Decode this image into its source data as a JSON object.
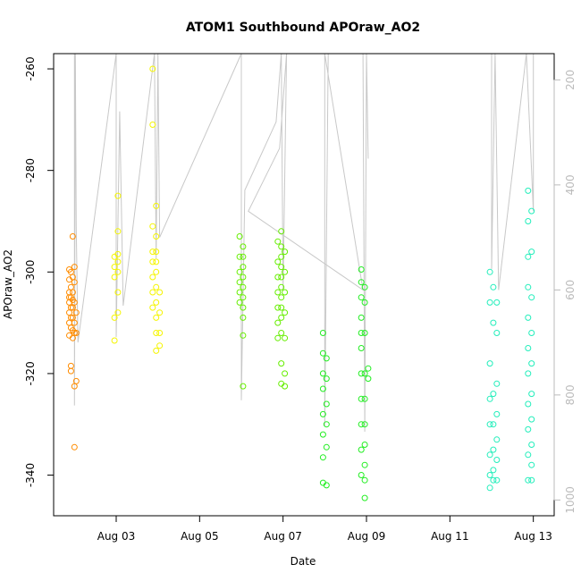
{
  "chart_data": {
    "type": "scatter",
    "title": "ATOM1 Southbound APOraw_AO2",
    "xlabel": "Date",
    "ylabel": "APOraw_AO2",
    "x_range": [
      "2023-08-01T12:00",
      "2023-08-13T12:00"
    ],
    "x_ticks": [
      "Aug 03",
      "Aug 05",
      "Aug 07",
      "Aug 09",
      "Aug 11",
      "Aug 13"
    ],
    "ylim": [
      -348,
      -257
    ],
    "y_ticks": [
      -260,
      -280,
      -300,
      -320,
      -340
    ],
    "y2_label": "",
    "y2_lim": [
      1030,
      150
    ],
    "y2_ticks": [
      200,
      400,
      600,
      800,
      1000
    ],
    "y2_color": "#bbbbbb",
    "grid": false,
    "depth_trace": {
      "color": "#c8c8c8",
      "points": [
        [
          "2023-08-02T00:00",
          150
        ],
        [
          "2023-08-02T00:00",
          820
        ],
        [
          "2023-08-02T00:30",
          150
        ],
        [
          "2023-08-02T01:00",
          480
        ],
        [
          "2023-08-02T02:00",
          700
        ],
        [
          "2023-08-03T00:00",
          150
        ],
        [
          "2023-08-03T00:00",
          690
        ],
        [
          "2023-08-03T02:00",
          260
        ],
        [
          "2023-08-03T04:00",
          630
        ],
        [
          "2023-08-03T22:00",
          150
        ],
        [
          "2023-08-03T23:00",
          540
        ],
        [
          "2023-08-04T00:00",
          150
        ],
        [
          "2023-08-04T01:00",
          500
        ],
        [
          "2023-08-06T00:00",
          150
        ],
        [
          "2023-08-06T00:00",
          810
        ],
        [
          "2023-08-06T02:00",
          410
        ],
        [
          "2023-08-06T20:00",
          280
        ],
        [
          "2023-08-06T23:00",
          150
        ],
        [
          "2023-08-07T00:00",
          600
        ],
        [
          "2023-08-07T02:00",
          150
        ],
        [
          "2023-08-06T22:00",
          330
        ],
        [
          "2023-08-06T04:00",
          450
        ],
        [
          "2023-08-08T22:00",
          600
        ],
        [
          "2023-08-08T00:00",
          150
        ],
        [
          "2023-08-08T00:00",
          860
        ],
        [
          "2023-08-08T02:00",
          150
        ],
        [
          "2023-08-08T22:00",
          150
        ],
        [
          "2023-08-08T23:00",
          870
        ],
        [
          "2023-08-09T00:00",
          150
        ],
        [
          "2023-08-09T01:00",
          350
        ],
        [
          "2023-08-09T00:00",
          150
        ],
        [
          "2023-08-12T00:00",
          150
        ],
        [
          "2023-08-12T00:00",
          560
        ],
        [
          "2023-08-12T02:00",
          150
        ],
        [
          "2023-08-12T04:00",
          600
        ],
        [
          "2023-08-12T20:00",
          150
        ],
        [
          "2023-08-13T00:00",
          450
        ],
        [
          "2023-08-13T00:00",
          150
        ]
      ]
    },
    "series": [
      {
        "color": "#ff8c00",
        "points": [
          [
            "2023-08-01T21:00",
            -299.5
          ],
          [
            "2023-08-01T21:00",
            -301.5
          ],
          [
            "2023-08-01T21:00",
            -304
          ],
          [
            "2023-08-01T21:00",
            -305
          ],
          [
            "2023-08-01T21:00",
            -306
          ],
          [
            "2023-08-01T21:00",
            -308
          ],
          [
            "2023-08-01T21:00",
            -310
          ],
          [
            "2023-08-01T21:00",
            -312.5
          ],
          [
            "2023-08-01T22:00",
            -300
          ],
          [
            "2023-08-01T22:00",
            -303
          ],
          [
            "2023-08-01T22:00",
            -305
          ],
          [
            "2023-08-01T22:00",
            -307
          ],
          [
            "2023-08-01T22:00",
            -309
          ],
          [
            "2023-08-01T22:00",
            -311
          ],
          [
            "2023-08-01T22:00",
            -318.5
          ],
          [
            "2023-08-01T22:00",
            -319.5
          ],
          [
            "2023-08-01T23:00",
            -293
          ],
          [
            "2023-08-01T23:00",
            -301
          ],
          [
            "2023-08-01T23:00",
            -304
          ],
          [
            "2023-08-01T23:00",
            -305.5
          ],
          [
            "2023-08-01T23:00",
            -307
          ],
          [
            "2023-08-01T23:00",
            -309
          ],
          [
            "2023-08-01T23:00",
            -311.5
          ],
          [
            "2023-08-01T23:00",
            -313
          ],
          [
            "2023-08-02T00:00",
            -299
          ],
          [
            "2023-08-02T00:00",
            -302
          ],
          [
            "2023-08-02T00:00",
            -306
          ],
          [
            "2023-08-02T00:00",
            -310
          ],
          [
            "2023-08-02T00:00",
            -312
          ],
          [
            "2023-08-02T00:00",
            -322.5
          ],
          [
            "2023-08-02T00:00",
            -334.5
          ],
          [
            "2023-08-02T01:00",
            -308
          ],
          [
            "2023-08-02T01:00",
            -312
          ],
          [
            "2023-08-02T01:00",
            -321.5
          ]
        ]
      },
      {
        "color": "#f5f500",
        "points": [
          [
            "2023-08-02T23:00",
            -297
          ],
          [
            "2023-08-02T23:00",
            -299
          ],
          [
            "2023-08-02T23:00",
            -301
          ],
          [
            "2023-08-02T23:00",
            -309
          ],
          [
            "2023-08-02T23:00",
            -313.5
          ],
          [
            "2023-08-03T01:00",
            -285
          ],
          [
            "2023-08-03T01:00",
            -292
          ],
          [
            "2023-08-03T01:00",
            -296.5
          ],
          [
            "2023-08-03T01:00",
            -298
          ],
          [
            "2023-08-03T01:00",
            -300
          ],
          [
            "2023-08-03T01:00",
            -304
          ],
          [
            "2023-08-03T01:00",
            -308
          ],
          [
            "2023-08-03T21:00",
            -260
          ],
          [
            "2023-08-03T21:00",
            -271
          ],
          [
            "2023-08-03T21:00",
            -291
          ],
          [
            "2023-08-03T21:00",
            -296
          ],
          [
            "2023-08-03T21:00",
            -298
          ],
          [
            "2023-08-03T21:00",
            -301
          ],
          [
            "2023-08-03T21:00",
            -304
          ],
          [
            "2023-08-03T21:00",
            -307
          ],
          [
            "2023-08-03T23:00",
            -287
          ],
          [
            "2023-08-03T23:00",
            -293
          ],
          [
            "2023-08-03T23:00",
            -296
          ],
          [
            "2023-08-03T23:00",
            -298
          ],
          [
            "2023-08-03T23:00",
            -300
          ],
          [
            "2023-08-03T23:00",
            -303
          ],
          [
            "2023-08-03T23:00",
            -306
          ],
          [
            "2023-08-03T23:00",
            -309
          ],
          [
            "2023-08-03T23:00",
            -312
          ],
          [
            "2023-08-03T23:00",
            -315.5
          ],
          [
            "2023-08-04T01:00",
            -304
          ],
          [
            "2023-08-04T01:00",
            -308
          ],
          [
            "2023-08-04T01:00",
            -312
          ],
          [
            "2023-08-04T01:00",
            -314.5
          ]
        ]
      },
      {
        "color": "#66ee00",
        "points": [
          [
            "2023-08-05T23:00",
            -293
          ],
          [
            "2023-08-05T23:00",
            -297
          ],
          [
            "2023-08-05T23:00",
            -300
          ],
          [
            "2023-08-05T23:00",
            -302
          ],
          [
            "2023-08-05T23:00",
            -304
          ],
          [
            "2023-08-05T23:00",
            -306
          ],
          [
            "2023-08-06T01:00",
            -295
          ],
          [
            "2023-08-06T01:00",
            -297
          ],
          [
            "2023-08-06T01:00",
            -299
          ],
          [
            "2023-08-06T01:00",
            -301
          ],
          [
            "2023-08-06T01:00",
            -303
          ],
          [
            "2023-08-06T01:00",
            -305
          ],
          [
            "2023-08-06T01:00",
            -307
          ],
          [
            "2023-08-06T01:00",
            -309
          ],
          [
            "2023-08-06T01:00",
            -312.5
          ],
          [
            "2023-08-06T01:00",
            -322.5
          ],
          [
            "2023-08-06T21:00",
            -294
          ],
          [
            "2023-08-06T21:00",
            -298
          ],
          [
            "2023-08-06T21:00",
            -301
          ],
          [
            "2023-08-06T21:00",
            -304
          ],
          [
            "2023-08-06T21:00",
            -307
          ],
          [
            "2023-08-06T21:00",
            -310
          ],
          [
            "2023-08-06T21:00",
            -313
          ],
          [
            "2023-08-06T23:00",
            -292
          ],
          [
            "2023-08-06T23:00",
            -295
          ],
          [
            "2023-08-06T23:00",
            -297
          ],
          [
            "2023-08-06T23:00",
            -299
          ],
          [
            "2023-08-06T23:00",
            -301
          ],
          [
            "2023-08-06T23:00",
            -303
          ],
          [
            "2023-08-06T23:00",
            -305
          ],
          [
            "2023-08-06T23:00",
            -307
          ],
          [
            "2023-08-06T23:00",
            -309
          ],
          [
            "2023-08-06T23:00",
            -312
          ],
          [
            "2023-08-06T23:00",
            -318
          ],
          [
            "2023-08-06T23:00",
            -322
          ],
          [
            "2023-08-07T01:00",
            -296
          ],
          [
            "2023-08-07T01:00",
            -300
          ],
          [
            "2023-08-07T01:00",
            -304
          ],
          [
            "2023-08-07T01:00",
            -308
          ],
          [
            "2023-08-07T01:00",
            -313
          ],
          [
            "2023-08-07T01:00",
            -320
          ],
          [
            "2023-08-07T01:00",
            -322.5
          ]
        ]
      },
      {
        "color": "#22ee22",
        "points": [
          [
            "2023-08-07T23:00",
            -312
          ],
          [
            "2023-08-07T23:00",
            -316
          ],
          [
            "2023-08-07T23:00",
            -320
          ],
          [
            "2023-08-07T23:00",
            -323
          ],
          [
            "2023-08-07T23:00",
            -328
          ],
          [
            "2023-08-07T23:00",
            -332
          ],
          [
            "2023-08-07T23:00",
            -336.5
          ],
          [
            "2023-08-07T23:00",
            -341.5
          ],
          [
            "2023-08-08T01:00",
            -317
          ],
          [
            "2023-08-08T01:00",
            -321
          ],
          [
            "2023-08-08T01:00",
            -326
          ],
          [
            "2023-08-08T01:00",
            -330
          ],
          [
            "2023-08-08T01:00",
            -334.5
          ],
          [
            "2023-08-08T01:00",
            -342
          ],
          [
            "2023-08-08T21:00",
            -299.5
          ],
          [
            "2023-08-08T21:00",
            -302
          ],
          [
            "2023-08-08T21:00",
            -305
          ],
          [
            "2023-08-08T21:00",
            -309
          ],
          [
            "2023-08-08T21:00",
            -312
          ],
          [
            "2023-08-08T21:00",
            -315
          ],
          [
            "2023-08-08T21:00",
            -320
          ],
          [
            "2023-08-08T21:00",
            -325
          ],
          [
            "2023-08-08T21:00",
            -330
          ],
          [
            "2023-08-08T21:00",
            -335
          ],
          [
            "2023-08-08T21:00",
            -340
          ],
          [
            "2023-08-08T23:00",
            -303
          ],
          [
            "2023-08-08T23:00",
            -306
          ],
          [
            "2023-08-08T23:00",
            -312
          ],
          [
            "2023-08-08T23:00",
            -320
          ],
          [
            "2023-08-08T23:00",
            -325
          ],
          [
            "2023-08-08T23:00",
            -330
          ],
          [
            "2023-08-08T23:00",
            -334
          ],
          [
            "2023-08-08T23:00",
            -338
          ],
          [
            "2023-08-08T23:00",
            -341
          ],
          [
            "2023-08-08T23:00",
            -344.5
          ],
          [
            "2023-08-09T01:00",
            -319
          ],
          [
            "2023-08-09T01:00",
            -321
          ]
        ]
      },
      {
        "color": "#22eebb",
        "points": [
          [
            "2023-08-11T23:00",
            -300
          ],
          [
            "2023-08-11T23:00",
            -306
          ],
          [
            "2023-08-11T23:00",
            -318
          ],
          [
            "2023-08-11T23:00",
            -325
          ],
          [
            "2023-08-11T23:00",
            -330
          ],
          [
            "2023-08-11T23:00",
            -336
          ],
          [
            "2023-08-11T23:00",
            -340
          ],
          [
            "2023-08-11T23:00",
            -342.5
          ],
          [
            "2023-08-12T01:00",
            -303
          ],
          [
            "2023-08-12T01:00",
            -310
          ],
          [
            "2023-08-12T01:00",
            -324
          ],
          [
            "2023-08-12T01:00",
            -330
          ],
          [
            "2023-08-12T01:00",
            -335
          ],
          [
            "2023-08-12T01:00",
            -339
          ],
          [
            "2023-08-12T01:00",
            -341
          ],
          [
            "2023-08-12T03:00",
            -306
          ],
          [
            "2023-08-12T03:00",
            -312
          ],
          [
            "2023-08-12T03:00",
            -322
          ],
          [
            "2023-08-12T03:00",
            -328
          ],
          [
            "2023-08-12T03:00",
            -333
          ],
          [
            "2023-08-12T03:00",
            -337
          ],
          [
            "2023-08-12T03:00",
            -341
          ],
          [
            "2023-08-12T21:00",
            -284
          ],
          [
            "2023-08-12T21:00",
            -290
          ],
          [
            "2023-08-12T21:00",
            -297
          ],
          [
            "2023-08-12T21:00",
            -303
          ],
          [
            "2023-08-12T21:00",
            -309
          ],
          [
            "2023-08-12T21:00",
            -315
          ],
          [
            "2023-08-12T21:00",
            -320
          ],
          [
            "2023-08-12T21:00",
            -326
          ],
          [
            "2023-08-12T21:00",
            -331
          ],
          [
            "2023-08-12T21:00",
            -336
          ],
          [
            "2023-08-12T21:00",
            -341
          ],
          [
            "2023-08-12T23:00",
            -288
          ],
          [
            "2023-08-12T23:00",
            -296
          ],
          [
            "2023-08-12T23:00",
            -305
          ],
          [
            "2023-08-12T23:00",
            -312
          ],
          [
            "2023-08-12T23:00",
            -318
          ],
          [
            "2023-08-12T23:00",
            -324
          ],
          [
            "2023-08-12T23:00",
            -329
          ],
          [
            "2023-08-12T23:00",
            -334
          ],
          [
            "2023-08-12T23:00",
            -338
          ],
          [
            "2023-08-12T23:00",
            -341
          ]
        ]
      }
    ]
  }
}
